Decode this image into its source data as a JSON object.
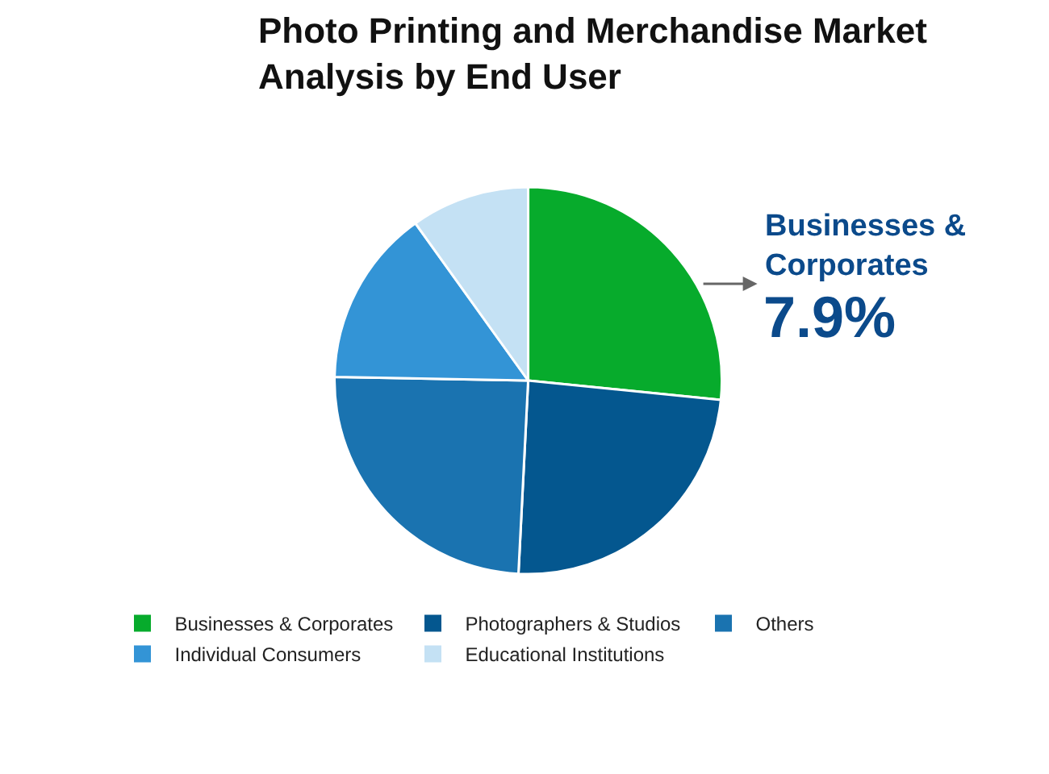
{
  "chart_data": {
    "type": "pie",
    "title": "Photo Printing and Merchandise Market Analysis by End User",
    "categories": [
      "Businesses & Corporates",
      "Photographers & Studios",
      "Others",
      "Individual Consumers",
      "Educational Institutions"
    ],
    "values": [
      26.6,
      24.2,
      24.5,
      14.8,
      9.9
    ],
    "colors": [
      "#07ab2c",
      "#04578f",
      "#1a73b0",
      "#3394d6",
      "#c4e1f4"
    ],
    "annotations": [
      "Businesses & Corporates",
      "7.9%"
    ],
    "legend": "bottom"
  }
}
